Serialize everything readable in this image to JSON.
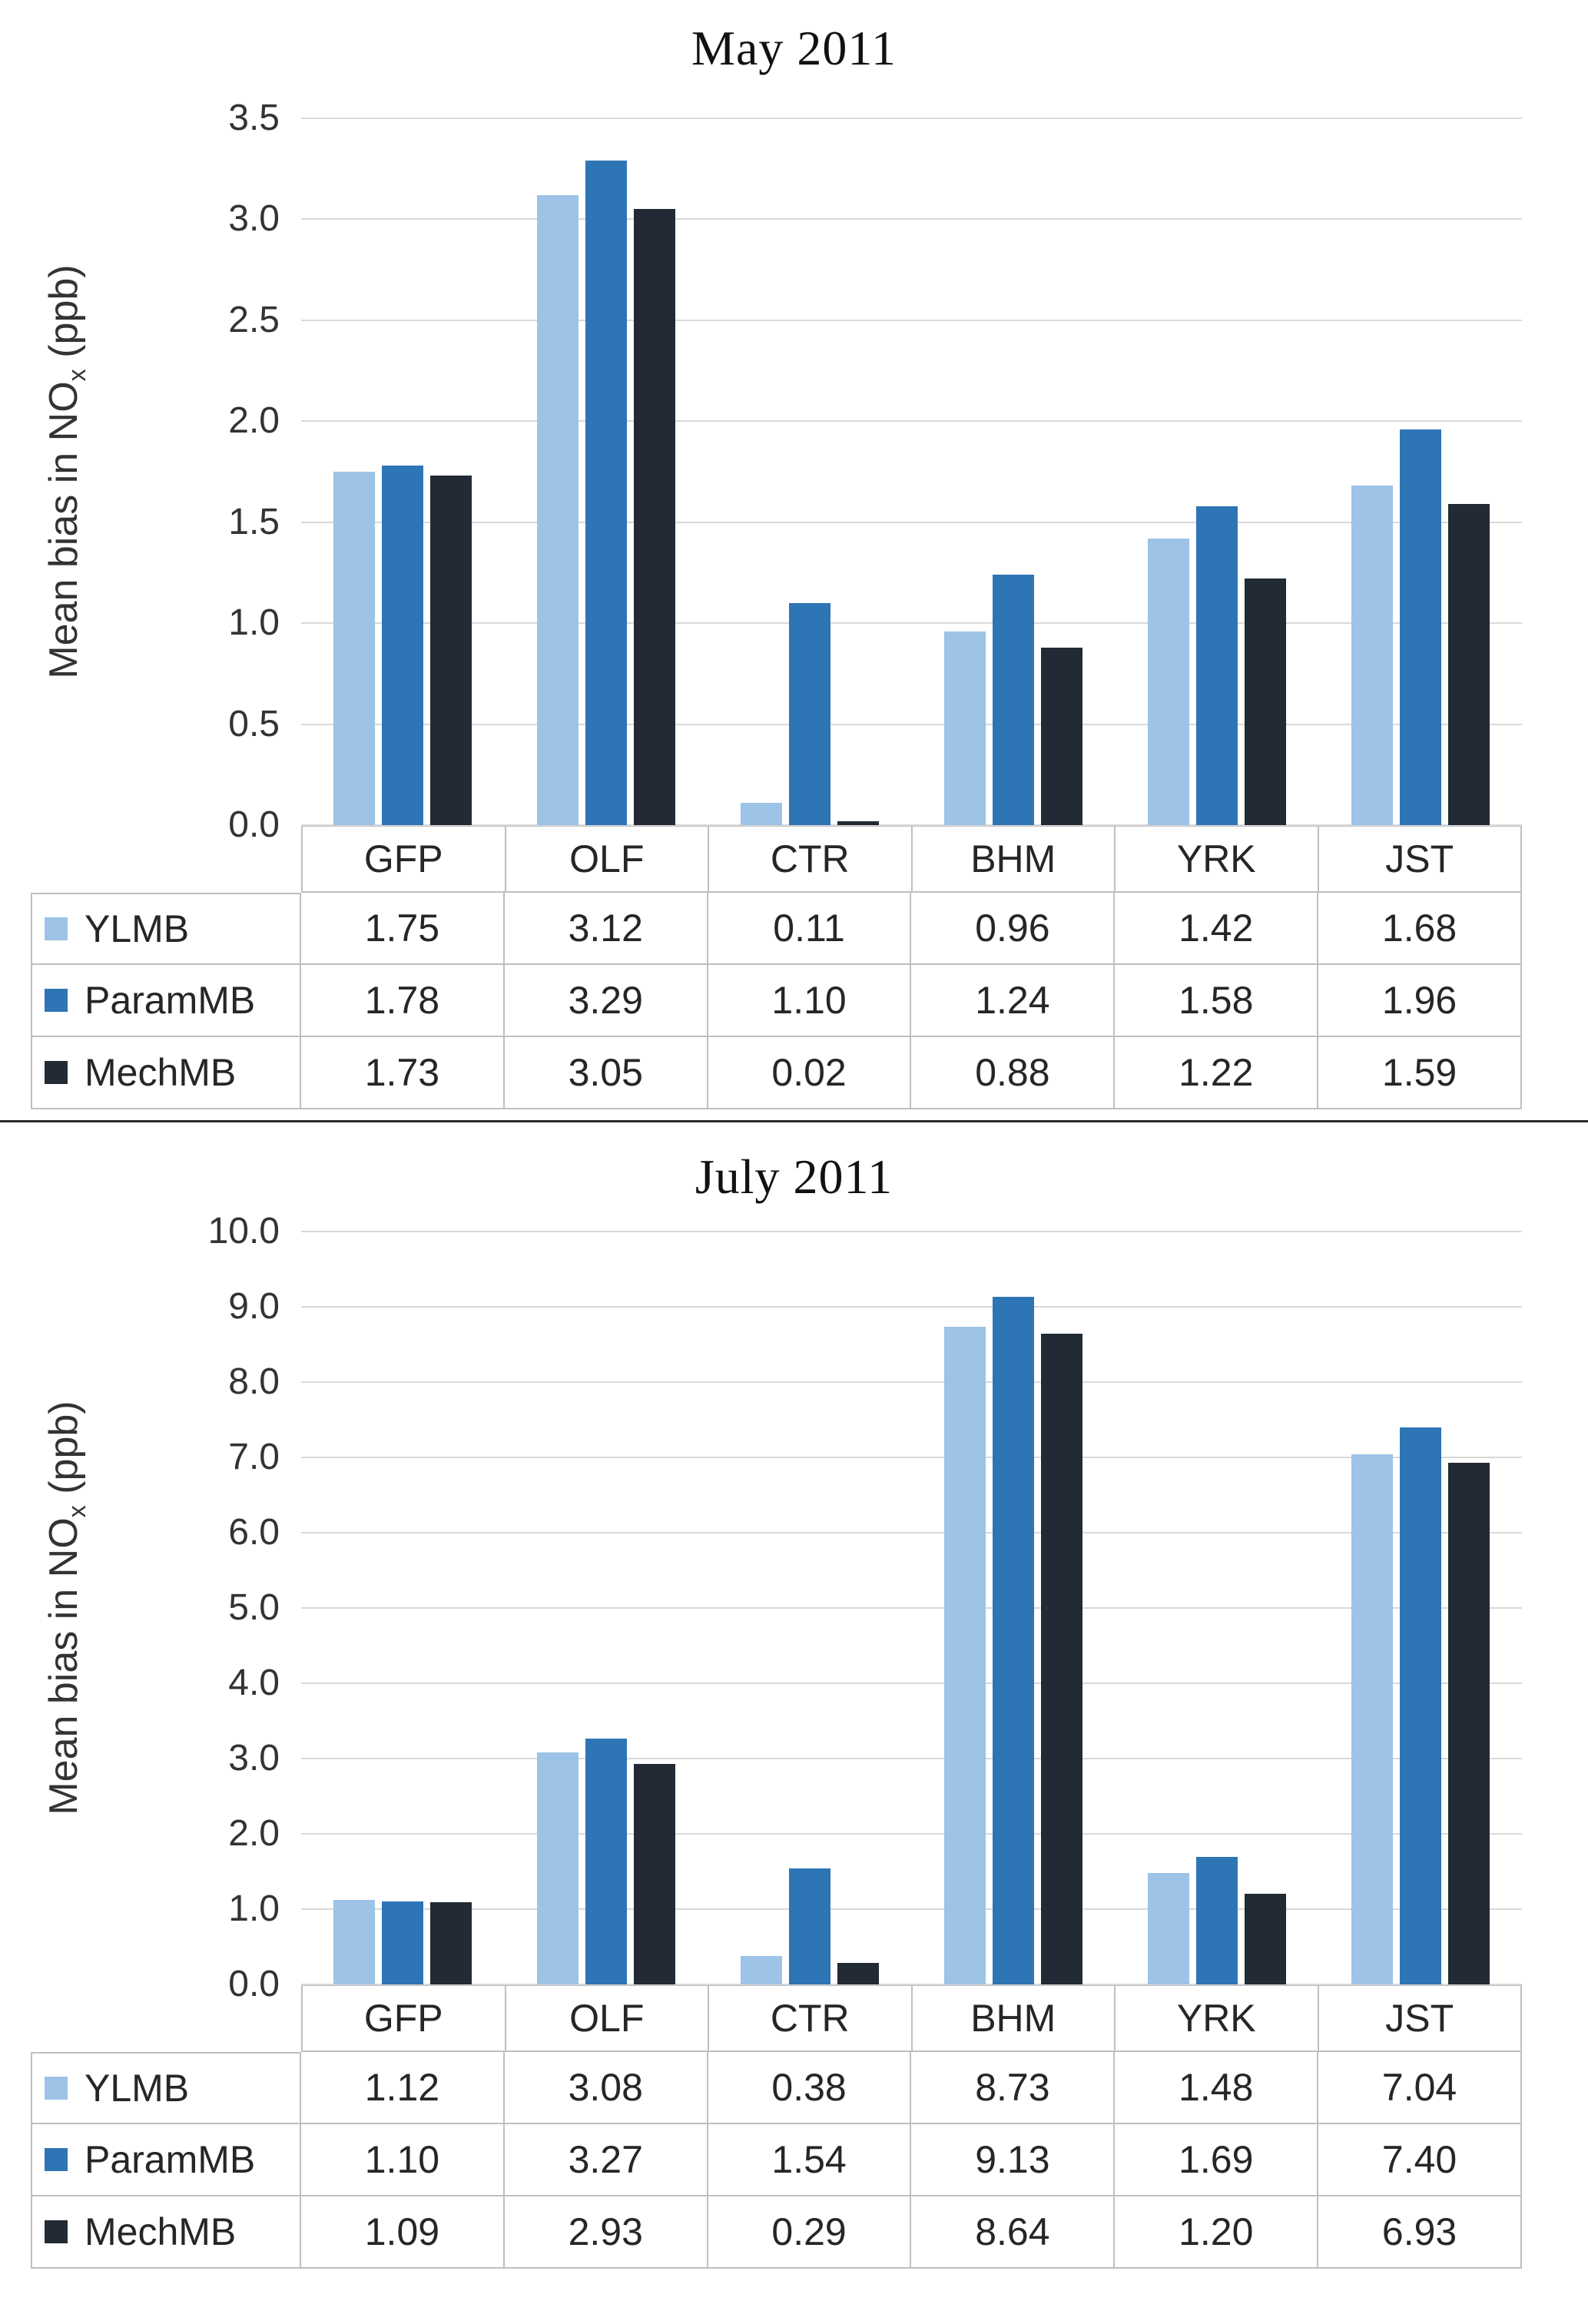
{
  "chart_data": [
    {
      "type": "bar",
      "title": "May 2011",
      "ylabel": "Mean bias in NOx (ppb)",
      "ylabel_parts": {
        "prefix": "Mean bias in NO",
        "sub": "x",
        "suffix": " (ppb)"
      },
      "categories": [
        "GFP",
        "OLF",
        "CTR",
        "BHM",
        "YRK",
        "JST"
      ],
      "series": [
        {
          "name": "YLMB",
          "color": "#9dc3e6",
          "values": [
            1.75,
            3.12,
            0.11,
            0.96,
            1.42,
            1.68
          ]
        },
        {
          "name": "ParamMB",
          "color": "#2e75b6",
          "values": [
            1.78,
            3.29,
            1.1,
            1.24,
            1.58,
            1.96
          ]
        },
        {
          "name": "MechMB",
          "color": "#222a35",
          "values": [
            1.73,
            3.05,
            0.02,
            0.88,
            1.22,
            1.59
          ]
        }
      ],
      "ylim": [
        0,
        3.5
      ],
      "ytick_step": 0.5,
      "ytick_decimals": 1,
      "value_decimals": 2,
      "grid": true,
      "legend_position": "table-left"
    },
    {
      "type": "bar",
      "title": "July 2011",
      "ylabel": "Mean bias in NOx (ppb)",
      "ylabel_parts": {
        "prefix": "Mean bias in NO",
        "sub": "x",
        "suffix": " (ppb)"
      },
      "categories": [
        "GFP",
        "OLF",
        "CTR",
        "BHM",
        "YRK",
        "JST"
      ],
      "series": [
        {
          "name": "YLMB",
          "color": "#9dc3e6",
          "values": [
            1.12,
            3.08,
            0.38,
            8.73,
            1.48,
            7.04
          ]
        },
        {
          "name": "ParamMB",
          "color": "#2e75b6",
          "values": [
            1.1,
            3.27,
            1.54,
            9.13,
            1.69,
            7.4
          ]
        },
        {
          "name": "MechMB",
          "color": "#222a35",
          "values": [
            1.09,
            2.93,
            0.29,
            8.64,
            1.2,
            6.93
          ]
        }
      ],
      "ylim": [
        0,
        10.0
      ],
      "ytick_step": 1.0,
      "ytick_decimals": 1,
      "value_decimals": 2,
      "grid": true,
      "legend_position": "table-left"
    }
  ]
}
